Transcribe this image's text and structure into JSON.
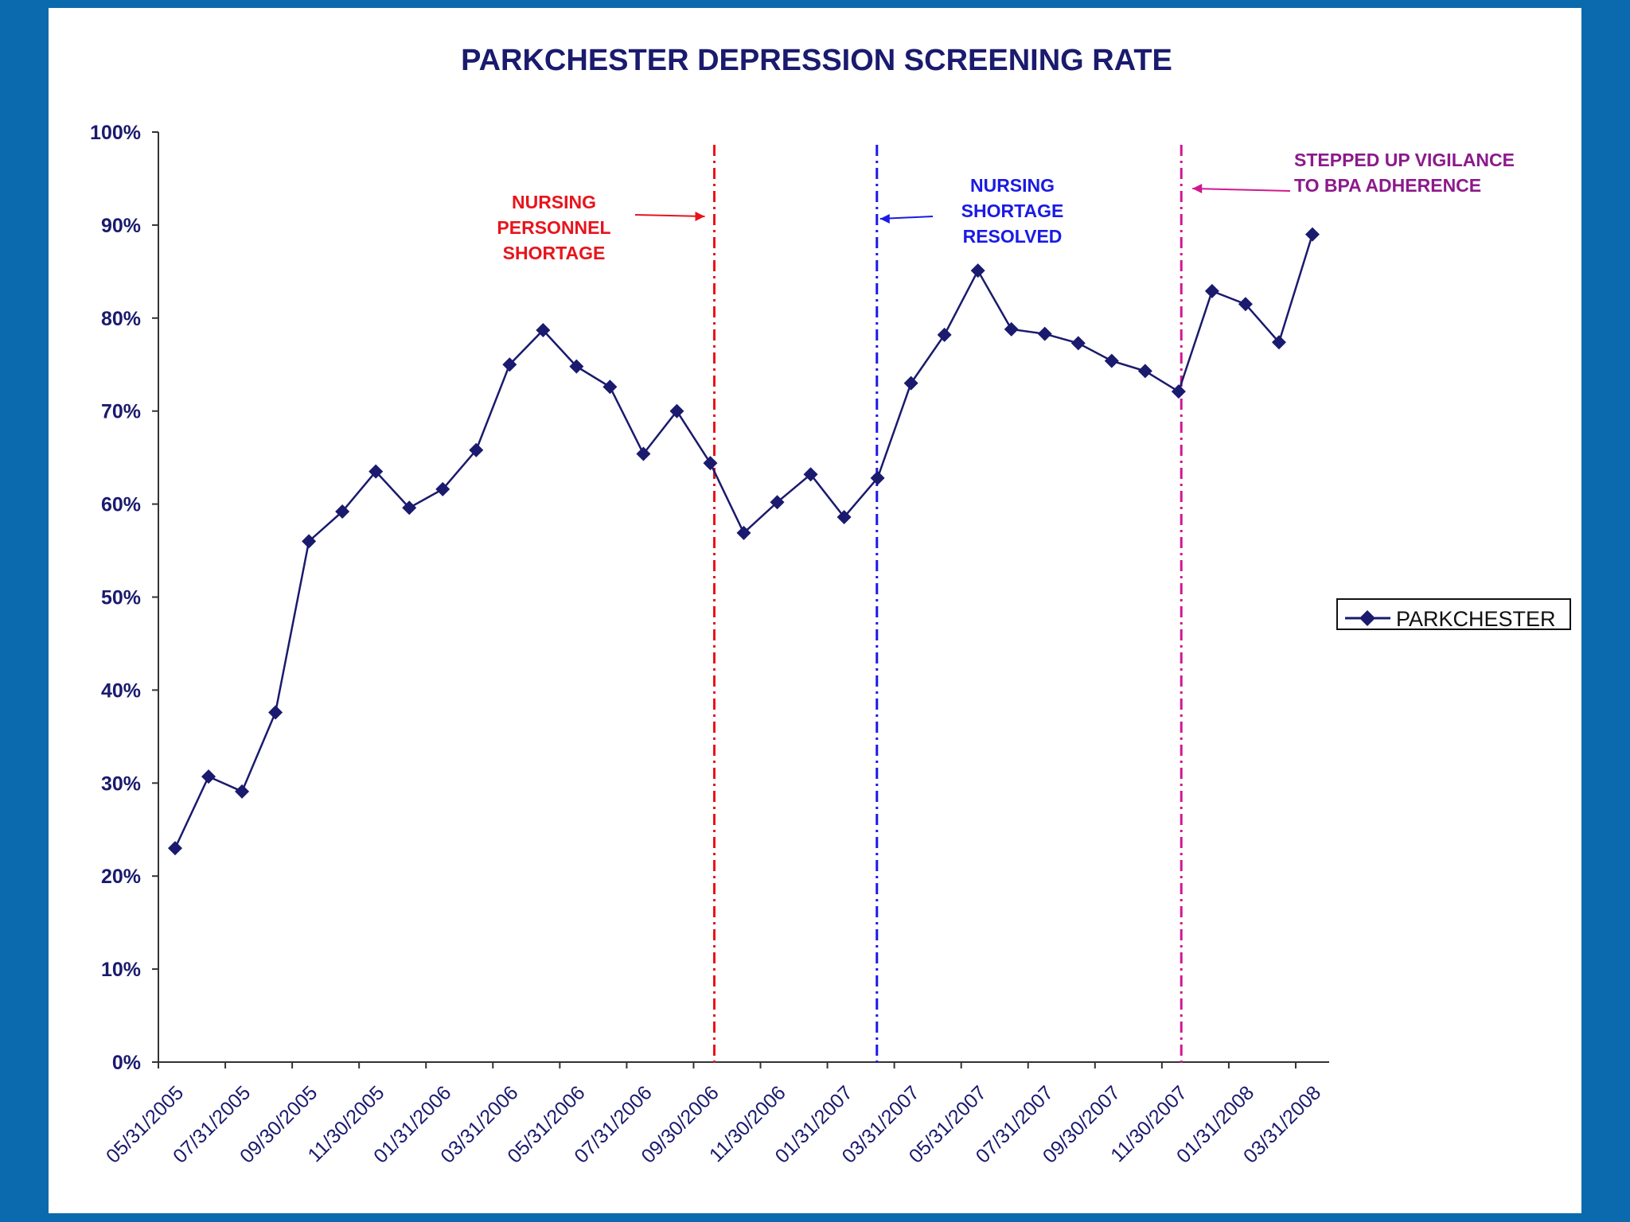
{
  "chart_data": {
    "type": "line",
    "title": "PARKCHESTER DEPRESSION SCREENING RATE",
    "xlabel": "",
    "ylabel": "",
    "ylim": [
      0,
      100
    ],
    "y_ticks": [
      "0%",
      "10%",
      "20%",
      "30%",
      "40%",
      "50%",
      "60%",
      "70%",
      "80%",
      "90%",
      "100%"
    ],
    "x_tick_labels": [
      "05/31/2005",
      "07/31/2005",
      "09/30/2005",
      "11/30/2005",
      "01/31/2006",
      "03/31/2006",
      "05/31/2006",
      "07/31/2006",
      "09/30/2006",
      "11/30/2006",
      "01/31/2007",
      "03/31/2007",
      "05/31/2007",
      "07/31/2007",
      "09/30/2007",
      "11/30/2007",
      "01/31/2008",
      "03/31/2008"
    ],
    "categories": [
      "05/31/2005",
      "06/30/2005",
      "07/31/2005",
      "08/31/2005",
      "09/30/2005",
      "10/31/2005",
      "11/30/2005",
      "12/31/2005",
      "01/31/2006",
      "02/28/2006",
      "03/31/2006",
      "04/30/2006",
      "05/31/2006",
      "06/30/2006",
      "07/31/2006",
      "08/31/2006",
      "09/30/2006",
      "10/31/2006",
      "11/30/2006",
      "12/31/2006",
      "01/31/2007",
      "02/28/2007",
      "03/31/2007",
      "04/30/2007",
      "05/31/2007",
      "06/30/2007",
      "07/31/2007",
      "08/31/2007",
      "09/30/2007",
      "10/31/2007",
      "11/30/2007",
      "12/31/2007",
      "01/31/2008",
      "02/29/2008",
      "03/31/2008"
    ],
    "series": [
      {
        "name": "PARKCHESTER",
        "color": "#1a1a6e",
        "values": [
          23.0,
          30.7,
          29.1,
          37.6,
          56.0,
          59.2,
          63.5,
          59.6,
          61.6,
          65.8,
          75.0,
          78.7,
          74.8,
          72.6,
          65.4,
          70.0,
          64.4,
          56.9,
          60.2,
          63.2,
          58.6,
          62.8,
          73.0,
          78.2,
          85.1,
          78.8,
          78.3,
          77.3,
          75.4,
          74.3,
          72.1,
          82.9,
          81.5,
          77.4,
          89.0
        ]
      }
    ],
    "annotations": [
      {
        "lines": [
          "NURSING",
          "PERSONNEL",
          "SHORTAGE"
        ],
        "color": "#e8141c",
        "at_category_index": 16.12
      },
      {
        "lines": [
          "NURSING",
          "SHORTAGE",
          "RESOLVED"
        ],
        "color": "#1a1ae6",
        "at_category_index": 20.98
      },
      {
        "lines": [
          "STEPPED UP VIGILANCE",
          "TO BPA ADHERENCE"
        ],
        "color": "#d1188f",
        "text_color": "#8b1a8b",
        "at_category_index": 30.08
      }
    ],
    "legend": {
      "position": "right",
      "label": "PARKCHESTER"
    }
  }
}
